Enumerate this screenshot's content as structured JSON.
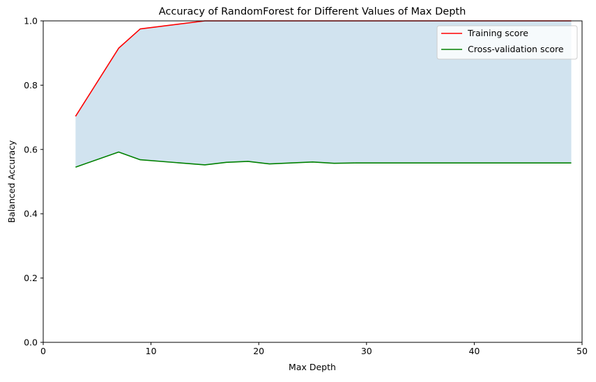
{
  "chart_data": {
    "type": "line",
    "title": "Accuracy of RandomForest for Different Values of Max Depth",
    "xlabel": "Max Depth",
    "ylabel": "Balanced Accuracy",
    "xlim": [
      0,
      50
    ],
    "ylim": [
      0.0,
      1.0
    ],
    "xticks": [
      0,
      10,
      20,
      30,
      40,
      50
    ],
    "xtick_labels": [
      "0",
      "10",
      "20",
      "30",
      "40",
      "50"
    ],
    "yticks": [
      0.0,
      0.2,
      0.4,
      0.6,
      0.8,
      1.0
    ],
    "ytick_labels": [
      "0.0",
      "0.2",
      "0.4",
      "0.6",
      "0.8",
      "1.0"
    ],
    "grid": false,
    "legend_position": "top-right",
    "x": [
      3,
      7,
      9,
      15,
      17,
      19,
      21,
      25,
      27,
      29,
      31,
      33,
      35,
      37,
      39,
      41,
      43,
      45,
      47,
      49
    ],
    "series": [
      {
        "name": "Training score",
        "color": "#ff0000",
        "values": [
          0.703,
          0.915,
          0.975,
          1.0,
          1.0,
          1.0,
          1.0,
          1.0,
          1.0,
          1.0,
          1.0,
          1.0,
          1.0,
          1.0,
          1.0,
          1.0,
          1.0,
          1.0,
          1.0,
          1.0
        ]
      },
      {
        "name": "Cross-validation score",
        "color": "#008000",
        "values": [
          0.545,
          0.592,
          0.568,
          0.552,
          0.56,
          0.563,
          0.555,
          0.561,
          0.557,
          0.558,
          0.558,
          0.558,
          0.558,
          0.558,
          0.558,
          0.558,
          0.558,
          0.558,
          0.558,
          0.558
        ]
      }
    ],
    "fill_between": {
      "color": "#d1e3ef",
      "between": [
        "Training score",
        "Cross-validation score"
      ]
    }
  }
}
